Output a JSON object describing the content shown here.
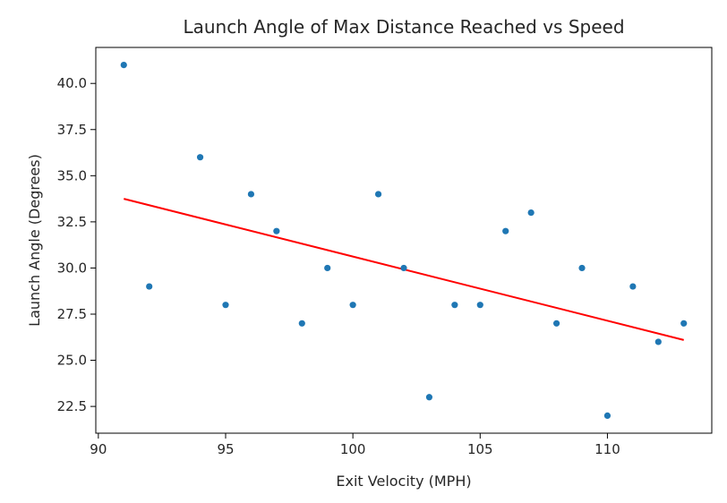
{
  "chart_data": {
    "type": "scatter",
    "title": "Launch Angle of Max Distance Reached vs Speed",
    "xlabel": "Exit Velocity (MPH)",
    "ylabel": "Launch Angle (Degrees)",
    "xlim": [
      89.9,
      114.1
    ],
    "ylim": [
      21.05,
      41.95
    ],
    "xticks": [
      90,
      95,
      100,
      105,
      110
    ],
    "xtick_labels": [
      "90",
      "95",
      "100",
      "105",
      "110"
    ],
    "yticks": [
      22.5,
      25.0,
      27.5,
      30.0,
      32.5,
      35.0,
      37.5,
      40.0
    ],
    "ytick_labels": [
      "22.5",
      "25.0",
      "27.5",
      "30.0",
      "32.5",
      "35.0",
      "37.5",
      "40.0"
    ],
    "grid": false,
    "points": {
      "x": [
        91,
        92,
        94,
        95,
        96,
        97,
        98,
        99,
        100,
        101,
        102,
        103,
        104,
        105,
        106,
        107,
        108,
        109,
        110,
        111,
        112,
        113
      ],
      "y": [
        41,
        29,
        36,
        28,
        34,
        32,
        27,
        30,
        28,
        34,
        30,
        23,
        28,
        28,
        32,
        33,
        27,
        30,
        22,
        29,
        26,
        27
      ],
      "color": "#1f77b4"
    },
    "trend_line": {
      "x": [
        91,
        113
      ],
      "y": [
        33.75,
        26.1
      ],
      "color": "#ff0000"
    }
  }
}
